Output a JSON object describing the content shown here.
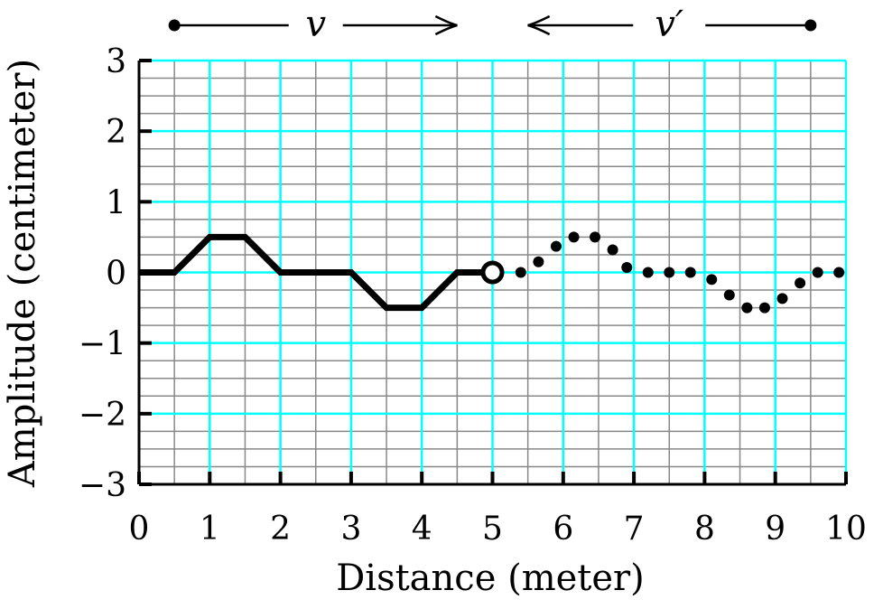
{
  "chart_data": {
    "type": "line",
    "xlabel": "Distance (meter)",
    "ylabel": "Amplitude (centimeter)",
    "xlim": [
      0,
      10
    ],
    "ylim": [
      -3,
      3
    ],
    "xticks": [
      0,
      1,
      2,
      3,
      4,
      5,
      6,
      7,
      8,
      9,
      10
    ],
    "yticks": [
      -3,
      -2,
      -1,
      0,
      1,
      2,
      3
    ],
    "xtick_labels": [
      "0",
      "1",
      "2",
      "3",
      "4",
      "5",
      "6",
      "7",
      "8",
      "9",
      "10"
    ],
    "ytick_labels": [
      "−3",
      "−2",
      "−1",
      "0",
      "1",
      "2",
      "3"
    ],
    "grid": {
      "major": true,
      "minor": true,
      "major_color": "#00ffff",
      "minor_color": "#888888"
    },
    "series": [
      {
        "style": "solid",
        "color": "#000000",
        "x": [
          0,
          0.5,
          1,
          1.5,
          2,
          2.5,
          3,
          3.5,
          4,
          4.5,
          5
        ],
        "y": [
          0,
          0,
          0.5,
          0.5,
          0,
          0,
          0,
          -0.5,
          -0.5,
          0,
          0
        ]
      },
      {
        "style": "dotted",
        "color": "#000000",
        "x": [
          5.4,
          5.65,
          5.9,
          6.15,
          6.45,
          6.7,
          6.9,
          7.2,
          7.5,
          7.8,
          8.1,
          8.35,
          8.6,
          8.85,
          9.1,
          9.35,
          9.6,
          9.9
        ],
        "y": [
          0,
          0.15,
          0.37,
          0.5,
          0.5,
          0.32,
          0.07,
          0,
          0,
          0,
          -0.1,
          -0.32,
          -0.5,
          -0.5,
          -0.37,
          -0.15,
          0,
          0
        ]
      }
    ],
    "markers": [
      {
        "x": 5,
        "y": 0,
        "style": "open-circle"
      }
    ],
    "annotations": [
      {
        "text": "v",
        "direction": "right",
        "x_from": 0.5,
        "x_to": 4.5
      },
      {
        "text": "v′",
        "direction": "left",
        "x_from": 9.5,
        "x_to": 5.5
      }
    ]
  }
}
